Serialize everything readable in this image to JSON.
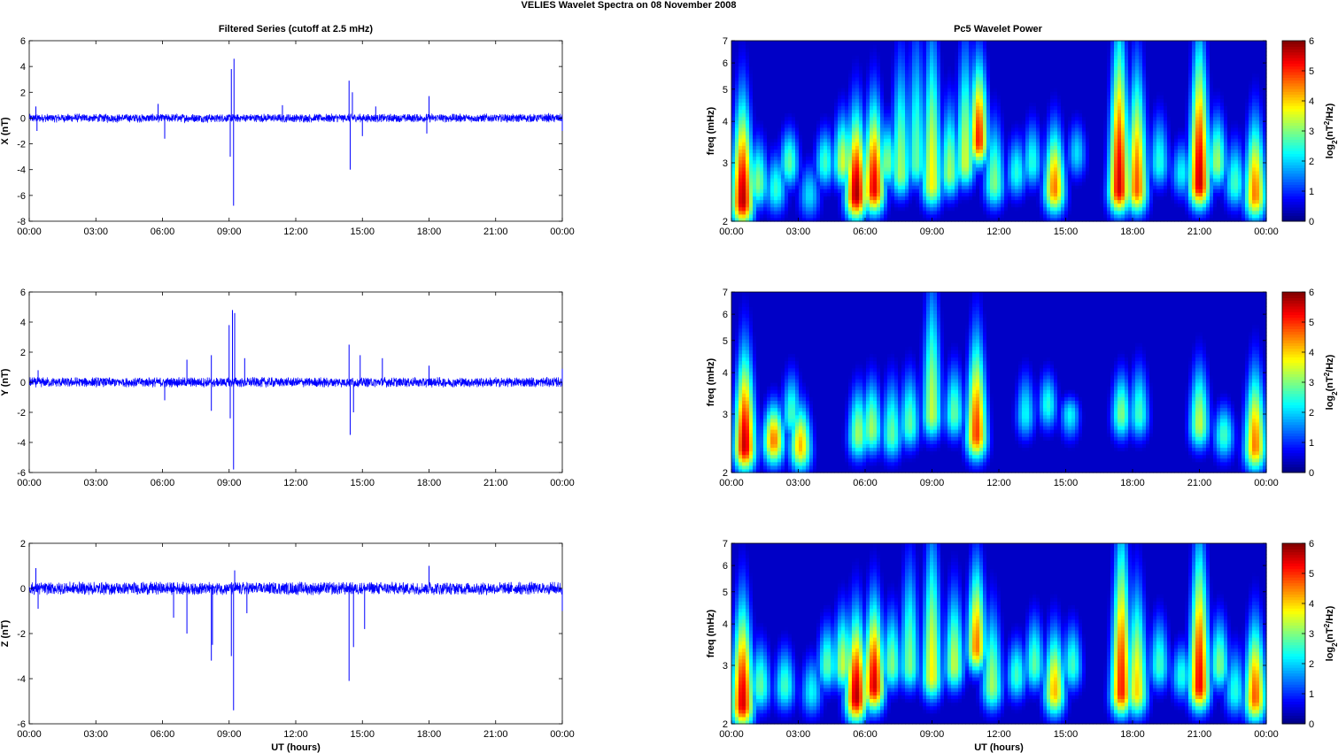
{
  "figure": {
    "suptitle": "VELIES Wavelet Spectra on 08 November  2008",
    "left_title": "Filtered Series (cutoff at 2.5 mHz)",
    "right_title": "Pc5 Wavelet Power",
    "xlabel": "UT (hours)",
    "freq_label": "freq (mHz)",
    "colorbar_label": "log2(nT2/Hz)"
  },
  "chart_data": [
    {
      "type": "line",
      "title": "Filtered Series (cutoff at 2.5 mHz)",
      "ylabel": "X (nT)",
      "xlabel": "",
      "xlim": [
        0,
        24
      ],
      "ylim": [
        -8,
        6
      ],
      "xticks": [
        "00:00",
        "03:00",
        "06:00",
        "09:00",
        "12:00",
        "15:00",
        "18:00",
        "21:00",
        "00:00"
      ],
      "yticks": [
        -8,
        -6,
        -4,
        -2,
        0,
        2,
        4,
        6
      ],
      "noise_amp": 0.35,
      "spikes": [
        {
          "t": 0.3,
          "v": 0.9
        },
        {
          "t": 0.35,
          "v": -1.0
        },
        {
          "t": 6.1,
          "v": -1.6
        },
        {
          "t": 5.8,
          "v": 1.1
        },
        {
          "t": 9.05,
          "v": -3.0
        },
        {
          "t": 9.1,
          "v": 3.8
        },
        {
          "t": 9.2,
          "v": -6.8
        },
        {
          "t": 9.22,
          "v": 4.6
        },
        {
          "t": 11.4,
          "v": 1.0
        },
        {
          "t": 14.4,
          "v": 2.9
        },
        {
          "t": 14.45,
          "v": -4.0
        },
        {
          "t": 14.55,
          "v": 2.0
        },
        {
          "t": 15.0,
          "v": -1.4
        },
        {
          "t": 15.6,
          "v": 0.9
        },
        {
          "t": 18.0,
          "v": 1.7
        },
        {
          "t": 17.9,
          "v": -1.2
        },
        {
          "t": 24.0,
          "v": -1.0
        }
      ]
    },
    {
      "type": "line",
      "title": "",
      "ylabel": "Y (nT)",
      "xlabel": "",
      "xlim": [
        0,
        24
      ],
      "ylim": [
        -6,
        6
      ],
      "xticks": [
        "00:00",
        "03:00",
        "06:00",
        "09:00",
        "12:00",
        "15:00",
        "18:00",
        "21:00",
        "00:00"
      ],
      "yticks": [
        -6,
        -4,
        -2,
        0,
        2,
        4,
        6
      ],
      "noise_amp": 0.35,
      "spikes": [
        {
          "t": 0.4,
          "v": 0.8
        },
        {
          "t": 6.1,
          "v": -1.2
        },
        {
          "t": 7.1,
          "v": 1.5
        },
        {
          "t": 8.2,
          "v": 1.8
        },
        {
          "t": 8.2,
          "v": -1.9
        },
        {
          "t": 9.0,
          "v": 3.8
        },
        {
          "t": 9.05,
          "v": -2.4
        },
        {
          "t": 9.15,
          "v": 4.8
        },
        {
          "t": 9.2,
          "v": -5.8
        },
        {
          "t": 9.25,
          "v": 4.6
        },
        {
          "t": 9.7,
          "v": 1.6
        },
        {
          "t": 14.4,
          "v": 2.5
        },
        {
          "t": 14.45,
          "v": -3.5
        },
        {
          "t": 14.6,
          "v": -2.0
        },
        {
          "t": 14.9,
          "v": 1.8
        },
        {
          "t": 15.9,
          "v": 1.6
        },
        {
          "t": 18.0,
          "v": 1.1
        },
        {
          "t": 24.0,
          "v": 0.9
        }
      ]
    },
    {
      "type": "line",
      "title": "",
      "ylabel": "Z (nT)",
      "xlabel": "UT (hours)",
      "xlim": [
        0,
        24
      ],
      "ylim": [
        -6,
        2
      ],
      "xticks": [
        "00:00",
        "03:00",
        "06:00",
        "09:00",
        "12:00",
        "15:00",
        "18:00",
        "21:00",
        "00:00"
      ],
      "yticks": [
        -6,
        -4,
        -2,
        0,
        2
      ],
      "noise_amp": 0.3,
      "spikes": [
        {
          "t": 0.3,
          "v": 0.9
        },
        {
          "t": 0.4,
          "v": -0.9
        },
        {
          "t": 6.5,
          "v": -1.3
        },
        {
          "t": 7.1,
          "v": -2.0
        },
        {
          "t": 8.2,
          "v": -3.2
        },
        {
          "t": 8.25,
          "v": -2.5
        },
        {
          "t": 9.1,
          "v": -3.0
        },
        {
          "t": 9.2,
          "v": -5.4
        },
        {
          "t": 9.25,
          "v": 0.8
        },
        {
          "t": 9.8,
          "v": -1.1
        },
        {
          "t": 14.4,
          "v": -4.1
        },
        {
          "t": 14.6,
          "v": -2.6
        },
        {
          "t": 15.1,
          "v": -1.8
        },
        {
          "t": 18.0,
          "v": 1.0
        },
        {
          "t": 24.0,
          "v": -1.0
        }
      ]
    },
    {
      "type": "heatmap",
      "title": "Pc5 Wavelet Power",
      "ylabel": "freq (mHz)",
      "xlabel": "",
      "xlim": [
        0,
        24
      ],
      "ylim": [
        2,
        7
      ],
      "yscale": "log",
      "yticks": [
        2,
        3,
        4,
        5,
        6,
        7
      ],
      "xticks": [
        "00:00",
        "03:00",
        "06:00",
        "09:00",
        "12:00",
        "15:00",
        "18:00",
        "21:00",
        "00:00"
      ],
      "colorbar": {
        "label": "log2(nT2/Hz)",
        "min": 0,
        "max": 6,
        "ticks": [
          0,
          1,
          2,
          3,
          4,
          5,
          6
        ],
        "colormap": "jet"
      },
      "blobs": [
        {
          "t": 0.5,
          "f": 2.3,
          "p": 5.8,
          "top": 4.5
        },
        {
          "t": 1.2,
          "f": 2.6,
          "p": 3.0,
          "top": 3.5
        },
        {
          "t": 2.0,
          "f": 2.5,
          "p": 2.5,
          "top": 3.2
        },
        {
          "t": 2.6,
          "f": 3.0,
          "p": 2.8,
          "top": 3.8
        },
        {
          "t": 3.5,
          "f": 2.4,
          "p": 2.0,
          "top": 3.0
        },
        {
          "t": 4.2,
          "f": 3.0,
          "p": 2.6,
          "top": 3.8
        },
        {
          "t": 5.0,
          "f": 3.0,
          "p": 3.5,
          "top": 4.2
        },
        {
          "t": 5.6,
          "f": 2.4,
          "p": 5.9,
          "top": 4.2
        },
        {
          "t": 6.4,
          "f": 2.5,
          "p": 5.5,
          "top": 4.5
        },
        {
          "t": 7.0,
          "f": 3.0,
          "p": 3.0,
          "top": 4.0
        },
        {
          "t": 7.6,
          "f": 2.8,
          "p": 3.2,
          "top": 6.0
        },
        {
          "t": 8.3,
          "f": 3.0,
          "p": 2.8,
          "top": 7.0
        },
        {
          "t": 9.0,
          "f": 2.6,
          "p": 3.8,
          "top": 7.0
        },
        {
          "t": 9.8,
          "f": 2.8,
          "p": 3.2,
          "top": 4.5
        },
        {
          "t": 10.5,
          "f": 3.0,
          "p": 3.5,
          "top": 6.5
        },
        {
          "t": 11.1,
          "f": 3.5,
          "p": 5.2,
          "top": 6.0
        },
        {
          "t": 11.8,
          "f": 2.6,
          "p": 3.0,
          "top": 4.0
        },
        {
          "t": 12.8,
          "f": 2.8,
          "p": 2.4,
          "top": 3.6
        },
        {
          "t": 13.5,
          "f": 3.0,
          "p": 2.4,
          "top": 4.0
        },
        {
          "t": 14.5,
          "f": 2.5,
          "p": 4.6,
          "top": 3.8
        },
        {
          "t": 15.5,
          "f": 3.2,
          "p": 2.0,
          "top": 4.0
        },
        {
          "t": 17.4,
          "f": 2.5,
          "p": 5.6,
          "top": 7.0
        },
        {
          "t": 18.2,
          "f": 2.5,
          "p": 4.8,
          "top": 5.5
        },
        {
          "t": 19.2,
          "f": 3.0,
          "p": 2.4,
          "top": 4.2
        },
        {
          "t": 20.2,
          "f": 2.8,
          "p": 2.2,
          "top": 3.5
        },
        {
          "t": 21.0,
          "f": 2.6,
          "p": 5.7,
          "top": 6.5
        },
        {
          "t": 21.8,
          "f": 3.0,
          "p": 3.2,
          "top": 4.2
        },
        {
          "t": 22.6,
          "f": 2.6,
          "p": 2.6,
          "top": 3.5
        },
        {
          "t": 23.5,
          "f": 2.4,
          "p": 4.6,
          "top": 4.0
        }
      ]
    },
    {
      "type": "heatmap",
      "title": "",
      "ylabel": "freq (mHz)",
      "xlabel": "",
      "xlim": [
        0,
        24
      ],
      "ylim": [
        2,
        7
      ],
      "yscale": "log",
      "yticks": [
        2,
        3,
        4,
        5,
        6,
        7
      ],
      "xticks": [
        "00:00",
        "03:00",
        "06:00",
        "09:00",
        "12:00",
        "15:00",
        "18:00",
        "21:00",
        "00:00"
      ],
      "colorbar": {
        "label": "log2(nT2/Hz)",
        "min": 0,
        "max": 6,
        "ticks": [
          0,
          1,
          2,
          3,
          4,
          5,
          6
        ],
        "colormap": "jet"
      },
      "blobs": [
        {
          "t": 0.6,
          "f": 2.4,
          "p": 5.7,
          "top": 4.5
        },
        {
          "t": 1.9,
          "f": 2.5,
          "p": 4.6,
          "top": 3.2
        },
        {
          "t": 2.7,
          "f": 3.0,
          "p": 2.6,
          "top": 4.0
        },
        {
          "t": 3.1,
          "f": 2.4,
          "p": 4.2,
          "top": 3.2
        },
        {
          "t": 5.7,
          "f": 2.6,
          "p": 3.2,
          "top": 3.6
        },
        {
          "t": 6.3,
          "f": 2.7,
          "p": 3.2,
          "top": 3.8
        },
        {
          "t": 7.2,
          "f": 2.6,
          "p": 2.8,
          "top": 3.8
        },
        {
          "t": 8.0,
          "f": 2.8,
          "p": 2.8,
          "top": 4.0
        },
        {
          "t": 9.0,
          "f": 3.0,
          "p": 3.4,
          "top": 7.0
        },
        {
          "t": 10.0,
          "f": 3.0,
          "p": 2.8,
          "top": 4.2
        },
        {
          "t": 11.0,
          "f": 2.6,
          "p": 5.0,
          "top": 5.0
        },
        {
          "t": 13.2,
          "f": 3.0,
          "p": 2.2,
          "top": 4.0
        },
        {
          "t": 14.2,
          "f": 3.2,
          "p": 2.4,
          "top": 4.0
        },
        {
          "t": 15.2,
          "f": 3.0,
          "p": 2.2,
          "top": 3.4
        },
        {
          "t": 17.5,
          "f": 3.0,
          "p": 3.0,
          "top": 4.0
        },
        {
          "t": 18.3,
          "f": 3.0,
          "p": 2.6,
          "top": 4.2
        },
        {
          "t": 21.0,
          "f": 2.8,
          "p": 3.4,
          "top": 4.2
        },
        {
          "t": 22.1,
          "f": 2.6,
          "p": 2.6,
          "top": 3.2
        },
        {
          "t": 23.5,
          "f": 2.4,
          "p": 4.6,
          "top": 4.0
        }
      ]
    },
    {
      "type": "heatmap",
      "title": "",
      "ylabel": "freq (mHz)",
      "xlabel": "UT (hours)",
      "xlim": [
        0,
        24
      ],
      "ylim": [
        2,
        7
      ],
      "yscale": "log",
      "yticks": [
        2,
        3,
        4,
        5,
        6,
        7
      ],
      "xticks": [
        "00:00",
        "03:00",
        "06:00",
        "09:00",
        "12:00",
        "15:00",
        "18:00",
        "21:00",
        "00:00"
      ],
      "colorbar": {
        "label": "log2(nT2/Hz)",
        "min": 0,
        "max": 6,
        "ticks": [
          0,
          1,
          2,
          3,
          4,
          5,
          6
        ],
        "colormap": "jet"
      },
      "blobs": [
        {
          "t": 0.5,
          "f": 2.3,
          "p": 5.6,
          "top": 4.5
        },
        {
          "t": 1.3,
          "f": 2.6,
          "p": 2.8,
          "top": 3.5
        },
        {
          "t": 2.4,
          "f": 2.6,
          "p": 2.6,
          "top": 3.4
        },
        {
          "t": 3.6,
          "f": 2.5,
          "p": 2.2,
          "top": 3.2
        },
        {
          "t": 4.3,
          "f": 3.0,
          "p": 2.8,
          "top": 4.0
        },
        {
          "t": 5.0,
          "f": 3.0,
          "p": 3.4,
          "top": 4.4
        },
        {
          "t": 5.6,
          "f": 2.4,
          "p": 5.8,
          "top": 4.2
        },
        {
          "t": 6.4,
          "f": 2.6,
          "p": 5.6,
          "top": 4.6
        },
        {
          "t": 7.2,
          "f": 3.0,
          "p": 3.0,
          "top": 4.4
        },
        {
          "t": 8.0,
          "f": 3.0,
          "p": 3.0,
          "top": 6.0
        },
        {
          "t": 9.0,
          "f": 2.8,
          "p": 3.8,
          "top": 7.0
        },
        {
          "t": 10.0,
          "f": 3.0,
          "p": 3.4,
          "top": 5.0
        },
        {
          "t": 11.0,
          "f": 3.4,
          "p": 4.6,
          "top": 6.0
        },
        {
          "t": 11.7,
          "f": 2.6,
          "p": 3.2,
          "top": 4.4
        },
        {
          "t": 12.8,
          "f": 2.8,
          "p": 2.6,
          "top": 3.6
        },
        {
          "t": 13.6,
          "f": 3.0,
          "p": 2.8,
          "top": 4.2
        },
        {
          "t": 14.5,
          "f": 2.5,
          "p": 4.2,
          "top": 3.8
        },
        {
          "t": 15.3,
          "f": 3.0,
          "p": 2.6,
          "top": 4.0
        },
        {
          "t": 17.5,
          "f": 2.5,
          "p": 5.2,
          "top": 7.0
        },
        {
          "t": 18.2,
          "f": 2.5,
          "p": 4.0,
          "top": 5.0
        },
        {
          "t": 19.2,
          "f": 3.0,
          "p": 2.6,
          "top": 4.2
        },
        {
          "t": 20.2,
          "f": 2.8,
          "p": 2.4,
          "top": 3.5
        },
        {
          "t": 21.0,
          "f": 2.6,
          "p": 5.4,
          "top": 6.5
        },
        {
          "t": 21.9,
          "f": 3.0,
          "p": 3.0,
          "top": 4.2
        },
        {
          "t": 22.6,
          "f": 2.5,
          "p": 2.4,
          "top": 3.4
        },
        {
          "t": 23.5,
          "f": 2.4,
          "p": 4.8,
          "top": 4.0
        }
      ]
    }
  ]
}
